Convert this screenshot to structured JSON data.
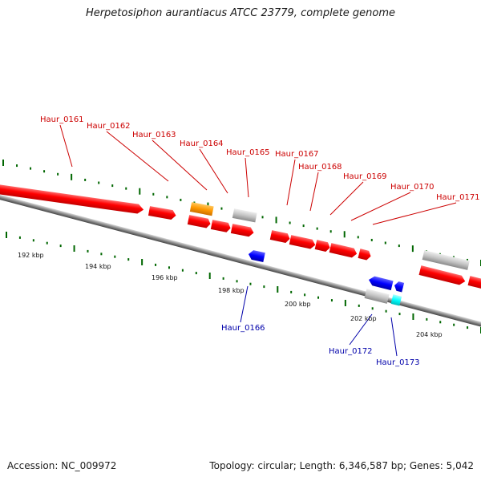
{
  "title": "Herpetosiphon aurantiacus ATCC 23779, complete genome",
  "footer": {
    "accession": "Accession: NC_009972",
    "summary": "Topology: circular; Length: 6,346,587 bp; Genes: 5,042"
  },
  "scale_labels": [
    "192 kbp",
    "194 kbp",
    "196 kbp",
    "198 kbp",
    "200 kbp",
    "202 kbp",
    "204 kbp"
  ],
  "gene_labels_top": [
    "Haur_0161",
    "Haur_0162",
    "Haur_0163",
    "Haur_0164",
    "Haur_0165",
    "Haur_0167",
    "Haur_0168",
    "Haur_0169",
    "Haur_0170",
    "Haur_0171"
  ],
  "gene_labels_bottom": [
    "Haur_0166",
    "Haur_0172",
    "Haur_0173"
  ],
  "colors": {
    "red_gene": "#ff0000",
    "orange_gene": "#ff9900",
    "gray_gene": "#c0c0c0",
    "blue_gene": "#0000ff",
    "cyan_gene": "#00ffff",
    "top_label": "#cc0000",
    "bottom_label": "#0000aa",
    "tick": "#006600",
    "backbone": "#777777"
  }
}
